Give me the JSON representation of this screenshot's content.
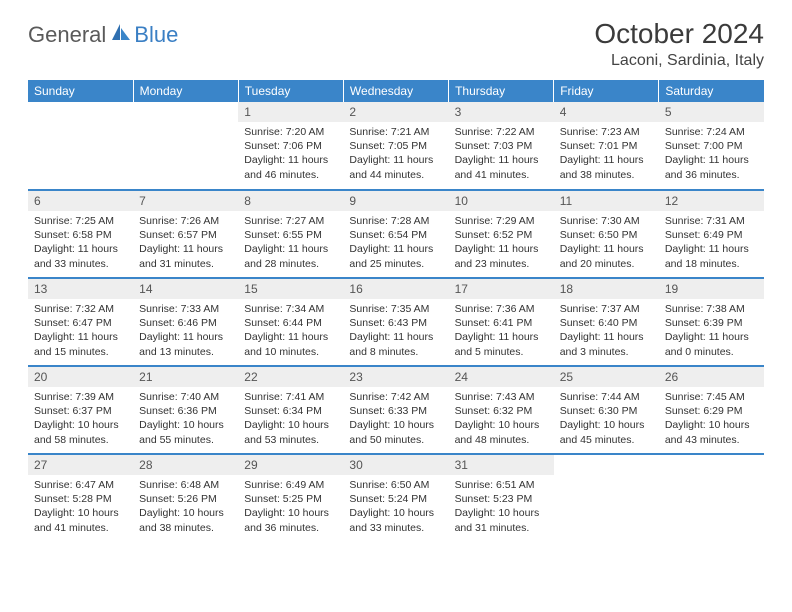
{
  "logo": {
    "part1": "General",
    "part2": "Blue"
  },
  "title": "October 2024",
  "location": "Laconi, Sardinia, Italy",
  "colors": {
    "header_bg": "#3a85c9",
    "header_text": "#ffffff",
    "daynum_bg": "#eeeeee",
    "border": "#3a85c9",
    "logo_gray": "#5a5a5a",
    "logo_blue": "#3a7fc4"
  },
  "day_headers": [
    "Sunday",
    "Monday",
    "Tuesday",
    "Wednesday",
    "Thursday",
    "Friday",
    "Saturday"
  ],
  "weeks": [
    [
      null,
      null,
      {
        "n": "1",
        "sr": "Sunrise: 7:20 AM",
        "ss": "Sunset: 7:06 PM",
        "dl": "Daylight: 11 hours and 46 minutes."
      },
      {
        "n": "2",
        "sr": "Sunrise: 7:21 AM",
        "ss": "Sunset: 7:05 PM",
        "dl": "Daylight: 11 hours and 44 minutes."
      },
      {
        "n": "3",
        "sr": "Sunrise: 7:22 AM",
        "ss": "Sunset: 7:03 PM",
        "dl": "Daylight: 11 hours and 41 minutes."
      },
      {
        "n": "4",
        "sr": "Sunrise: 7:23 AM",
        "ss": "Sunset: 7:01 PM",
        "dl": "Daylight: 11 hours and 38 minutes."
      },
      {
        "n": "5",
        "sr": "Sunrise: 7:24 AM",
        "ss": "Sunset: 7:00 PM",
        "dl": "Daylight: 11 hours and 36 minutes."
      }
    ],
    [
      {
        "n": "6",
        "sr": "Sunrise: 7:25 AM",
        "ss": "Sunset: 6:58 PM",
        "dl": "Daylight: 11 hours and 33 minutes."
      },
      {
        "n": "7",
        "sr": "Sunrise: 7:26 AM",
        "ss": "Sunset: 6:57 PM",
        "dl": "Daylight: 11 hours and 31 minutes."
      },
      {
        "n": "8",
        "sr": "Sunrise: 7:27 AM",
        "ss": "Sunset: 6:55 PM",
        "dl": "Daylight: 11 hours and 28 minutes."
      },
      {
        "n": "9",
        "sr": "Sunrise: 7:28 AM",
        "ss": "Sunset: 6:54 PM",
        "dl": "Daylight: 11 hours and 25 minutes."
      },
      {
        "n": "10",
        "sr": "Sunrise: 7:29 AM",
        "ss": "Sunset: 6:52 PM",
        "dl": "Daylight: 11 hours and 23 minutes."
      },
      {
        "n": "11",
        "sr": "Sunrise: 7:30 AM",
        "ss": "Sunset: 6:50 PM",
        "dl": "Daylight: 11 hours and 20 minutes."
      },
      {
        "n": "12",
        "sr": "Sunrise: 7:31 AM",
        "ss": "Sunset: 6:49 PM",
        "dl": "Daylight: 11 hours and 18 minutes."
      }
    ],
    [
      {
        "n": "13",
        "sr": "Sunrise: 7:32 AM",
        "ss": "Sunset: 6:47 PM",
        "dl": "Daylight: 11 hours and 15 minutes."
      },
      {
        "n": "14",
        "sr": "Sunrise: 7:33 AM",
        "ss": "Sunset: 6:46 PM",
        "dl": "Daylight: 11 hours and 13 minutes."
      },
      {
        "n": "15",
        "sr": "Sunrise: 7:34 AM",
        "ss": "Sunset: 6:44 PM",
        "dl": "Daylight: 11 hours and 10 minutes."
      },
      {
        "n": "16",
        "sr": "Sunrise: 7:35 AM",
        "ss": "Sunset: 6:43 PM",
        "dl": "Daylight: 11 hours and 8 minutes."
      },
      {
        "n": "17",
        "sr": "Sunrise: 7:36 AM",
        "ss": "Sunset: 6:41 PM",
        "dl": "Daylight: 11 hours and 5 minutes."
      },
      {
        "n": "18",
        "sr": "Sunrise: 7:37 AM",
        "ss": "Sunset: 6:40 PM",
        "dl": "Daylight: 11 hours and 3 minutes."
      },
      {
        "n": "19",
        "sr": "Sunrise: 7:38 AM",
        "ss": "Sunset: 6:39 PM",
        "dl": "Daylight: 11 hours and 0 minutes."
      }
    ],
    [
      {
        "n": "20",
        "sr": "Sunrise: 7:39 AM",
        "ss": "Sunset: 6:37 PM",
        "dl": "Daylight: 10 hours and 58 minutes."
      },
      {
        "n": "21",
        "sr": "Sunrise: 7:40 AM",
        "ss": "Sunset: 6:36 PM",
        "dl": "Daylight: 10 hours and 55 minutes."
      },
      {
        "n": "22",
        "sr": "Sunrise: 7:41 AM",
        "ss": "Sunset: 6:34 PM",
        "dl": "Daylight: 10 hours and 53 minutes."
      },
      {
        "n": "23",
        "sr": "Sunrise: 7:42 AM",
        "ss": "Sunset: 6:33 PM",
        "dl": "Daylight: 10 hours and 50 minutes."
      },
      {
        "n": "24",
        "sr": "Sunrise: 7:43 AM",
        "ss": "Sunset: 6:32 PM",
        "dl": "Daylight: 10 hours and 48 minutes."
      },
      {
        "n": "25",
        "sr": "Sunrise: 7:44 AM",
        "ss": "Sunset: 6:30 PM",
        "dl": "Daylight: 10 hours and 45 minutes."
      },
      {
        "n": "26",
        "sr": "Sunrise: 7:45 AM",
        "ss": "Sunset: 6:29 PM",
        "dl": "Daylight: 10 hours and 43 minutes."
      }
    ],
    [
      {
        "n": "27",
        "sr": "Sunrise: 6:47 AM",
        "ss": "Sunset: 5:28 PM",
        "dl": "Daylight: 10 hours and 41 minutes."
      },
      {
        "n": "28",
        "sr": "Sunrise: 6:48 AM",
        "ss": "Sunset: 5:26 PM",
        "dl": "Daylight: 10 hours and 38 minutes."
      },
      {
        "n": "29",
        "sr": "Sunrise: 6:49 AM",
        "ss": "Sunset: 5:25 PM",
        "dl": "Daylight: 10 hours and 36 minutes."
      },
      {
        "n": "30",
        "sr": "Sunrise: 6:50 AM",
        "ss": "Sunset: 5:24 PM",
        "dl": "Daylight: 10 hours and 33 minutes."
      },
      {
        "n": "31",
        "sr": "Sunrise: 6:51 AM",
        "ss": "Sunset: 5:23 PM",
        "dl": "Daylight: 10 hours and 31 minutes."
      },
      null,
      null
    ]
  ]
}
